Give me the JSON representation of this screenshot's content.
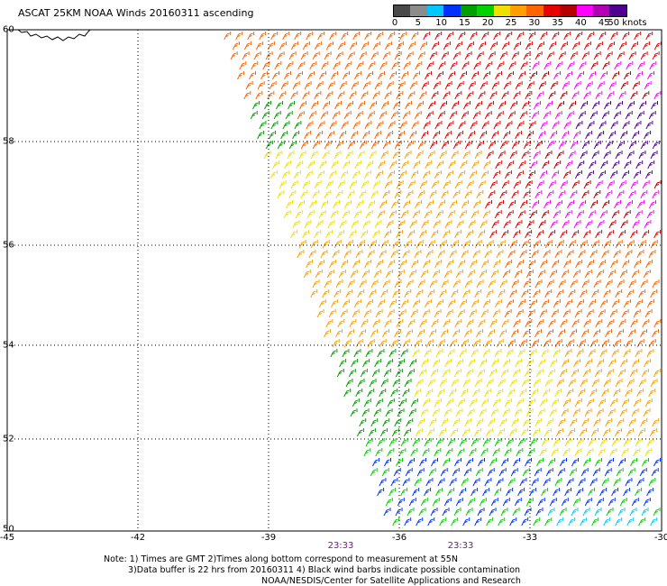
{
  "title": "ASCAT 25KM NOAA Winds 20160311 ascending",
  "legend": {
    "unit": "knots",
    "labels": [
      "0",
      "5",
      "10",
      "15",
      "20",
      "25",
      "30",
      "35",
      "40",
      "45",
      "50"
    ],
    "colors": [
      "#4a4a4a",
      "#8c8c8c",
      "#00c8ff",
      "#0032ff",
      "#00a000",
      "#00d200",
      "#f0e000",
      "#ffa000",
      "#ff6400",
      "#e60000",
      "#b40000",
      "#ff00ff",
      "#b400b4",
      "#500090"
    ]
  },
  "axes": {
    "x_ticks": [
      "-45",
      "-42",
      "-39",
      "-36",
      "-33",
      "-30"
    ],
    "y_ticks": [
      "60",
      "58",
      "56",
      "54",
      "52",
      "50"
    ]
  },
  "times": [
    "23:33",
    "23:33"
  ],
  "notes": {
    "line1": "Note: 1) Times are GMT 2)Times along bottom correspond to measurement at 55N",
    "line2": "3)Data buffer is 22 hrs from 20160311 4) Black wind barbs indicate possible contamination",
    "line3": "NOAA/NESDIS/Center for Satellite Applications and Research"
  }
}
